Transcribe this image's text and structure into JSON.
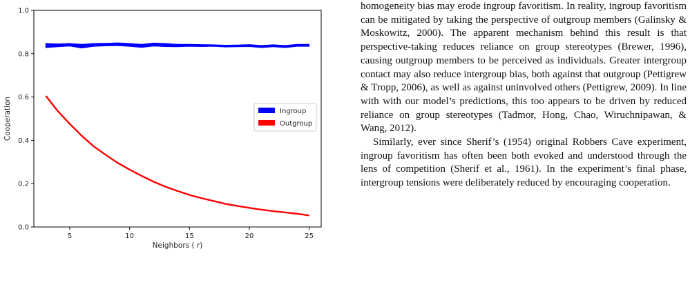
{
  "chart_data": {
    "type": "line",
    "xlabel": "Neighbors (r)",
    "ylabel": "Cooperation",
    "xlim": [
      2,
      26
    ],
    "ylim": [
      0.0,
      1.0
    ],
    "xticks": [
      "5",
      "10",
      "15",
      "20",
      "25"
    ],
    "yticks": [
      "0.0",
      "0.2",
      "0.4",
      "0.6",
      "0.8",
      "1.0"
    ],
    "legend_position": "center-right",
    "grid": false,
    "series": [
      {
        "name": "Ingroup",
        "color": "#0000ff",
        "x": [
          3,
          4,
          5,
          6,
          7,
          8,
          9,
          10,
          11,
          12,
          13,
          14,
          15,
          16,
          17,
          18,
          19,
          20,
          21,
          22,
          23,
          24,
          25
        ],
        "lower": [
          0.828,
          0.832,
          0.835,
          0.826,
          0.834,
          0.836,
          0.837,
          0.834,
          0.829,
          0.835,
          0.833,
          0.832,
          0.834,
          0.833,
          0.834,
          0.831,
          0.832,
          0.833,
          0.828,
          0.832,
          0.828,
          0.834,
          0.834
        ],
        "upper": [
          0.847,
          0.845,
          0.847,
          0.843,
          0.847,
          0.848,
          0.85,
          0.847,
          0.843,
          0.849,
          0.847,
          0.843,
          0.843,
          0.842,
          0.841,
          0.839,
          0.84,
          0.842,
          0.838,
          0.841,
          0.838,
          0.843,
          0.843
        ]
      },
      {
        "name": "Outgroup",
        "color": "#ff0000",
        "x": [
          3,
          4,
          5,
          6,
          7,
          8,
          9,
          10,
          11,
          12,
          13,
          14,
          15,
          16,
          17,
          18,
          19,
          20,
          21,
          22,
          23,
          24,
          25
        ],
        "values": [
          0.605,
          0.535,
          0.476,
          0.421,
          0.372,
          0.333,
          0.296,
          0.265,
          0.236,
          0.209,
          0.186,
          0.166,
          0.148,
          0.133,
          0.12,
          0.107,
          0.097,
          0.088,
          0.08,
          0.073,
          0.067,
          0.061,
          0.053
        ]
      }
    ]
  },
  "text": {
    "para1": "homogeneity bias may erode ingroup favoritism. In reality, ingroup favoritism can be mitigated by taking the perspective of outgroup members (Galinsky & Moskowitz, 2000). The apparent mechanism behind this result is that perspective-taking reduces reliance on group stereotypes (Brewer, 1996), causing outgroup members to be perceived as individuals. Greater intergroup contact may also reduce intergroup bias, both against that outgroup (Pettigrew & Tropp, 2006), as well as against uninvolved others (Pettigrew, 2009). In line with with our model’s predictions, this too appears to be driven by reduced reliance on group stereotypes (Tadmor, Hong, Chao, Wiruchnipawan, & Wang, 2012).",
    "para2": "Similarly, ever since Sherif’s (1954) original Robbers Cave experiment, ingroup favoritism has often been both evoked and understood through the lens of competition (Sherif et al., 1961). In the experiment’s final phase, intergroup tensions were deliberately reduced by encouraging cooperation."
  }
}
